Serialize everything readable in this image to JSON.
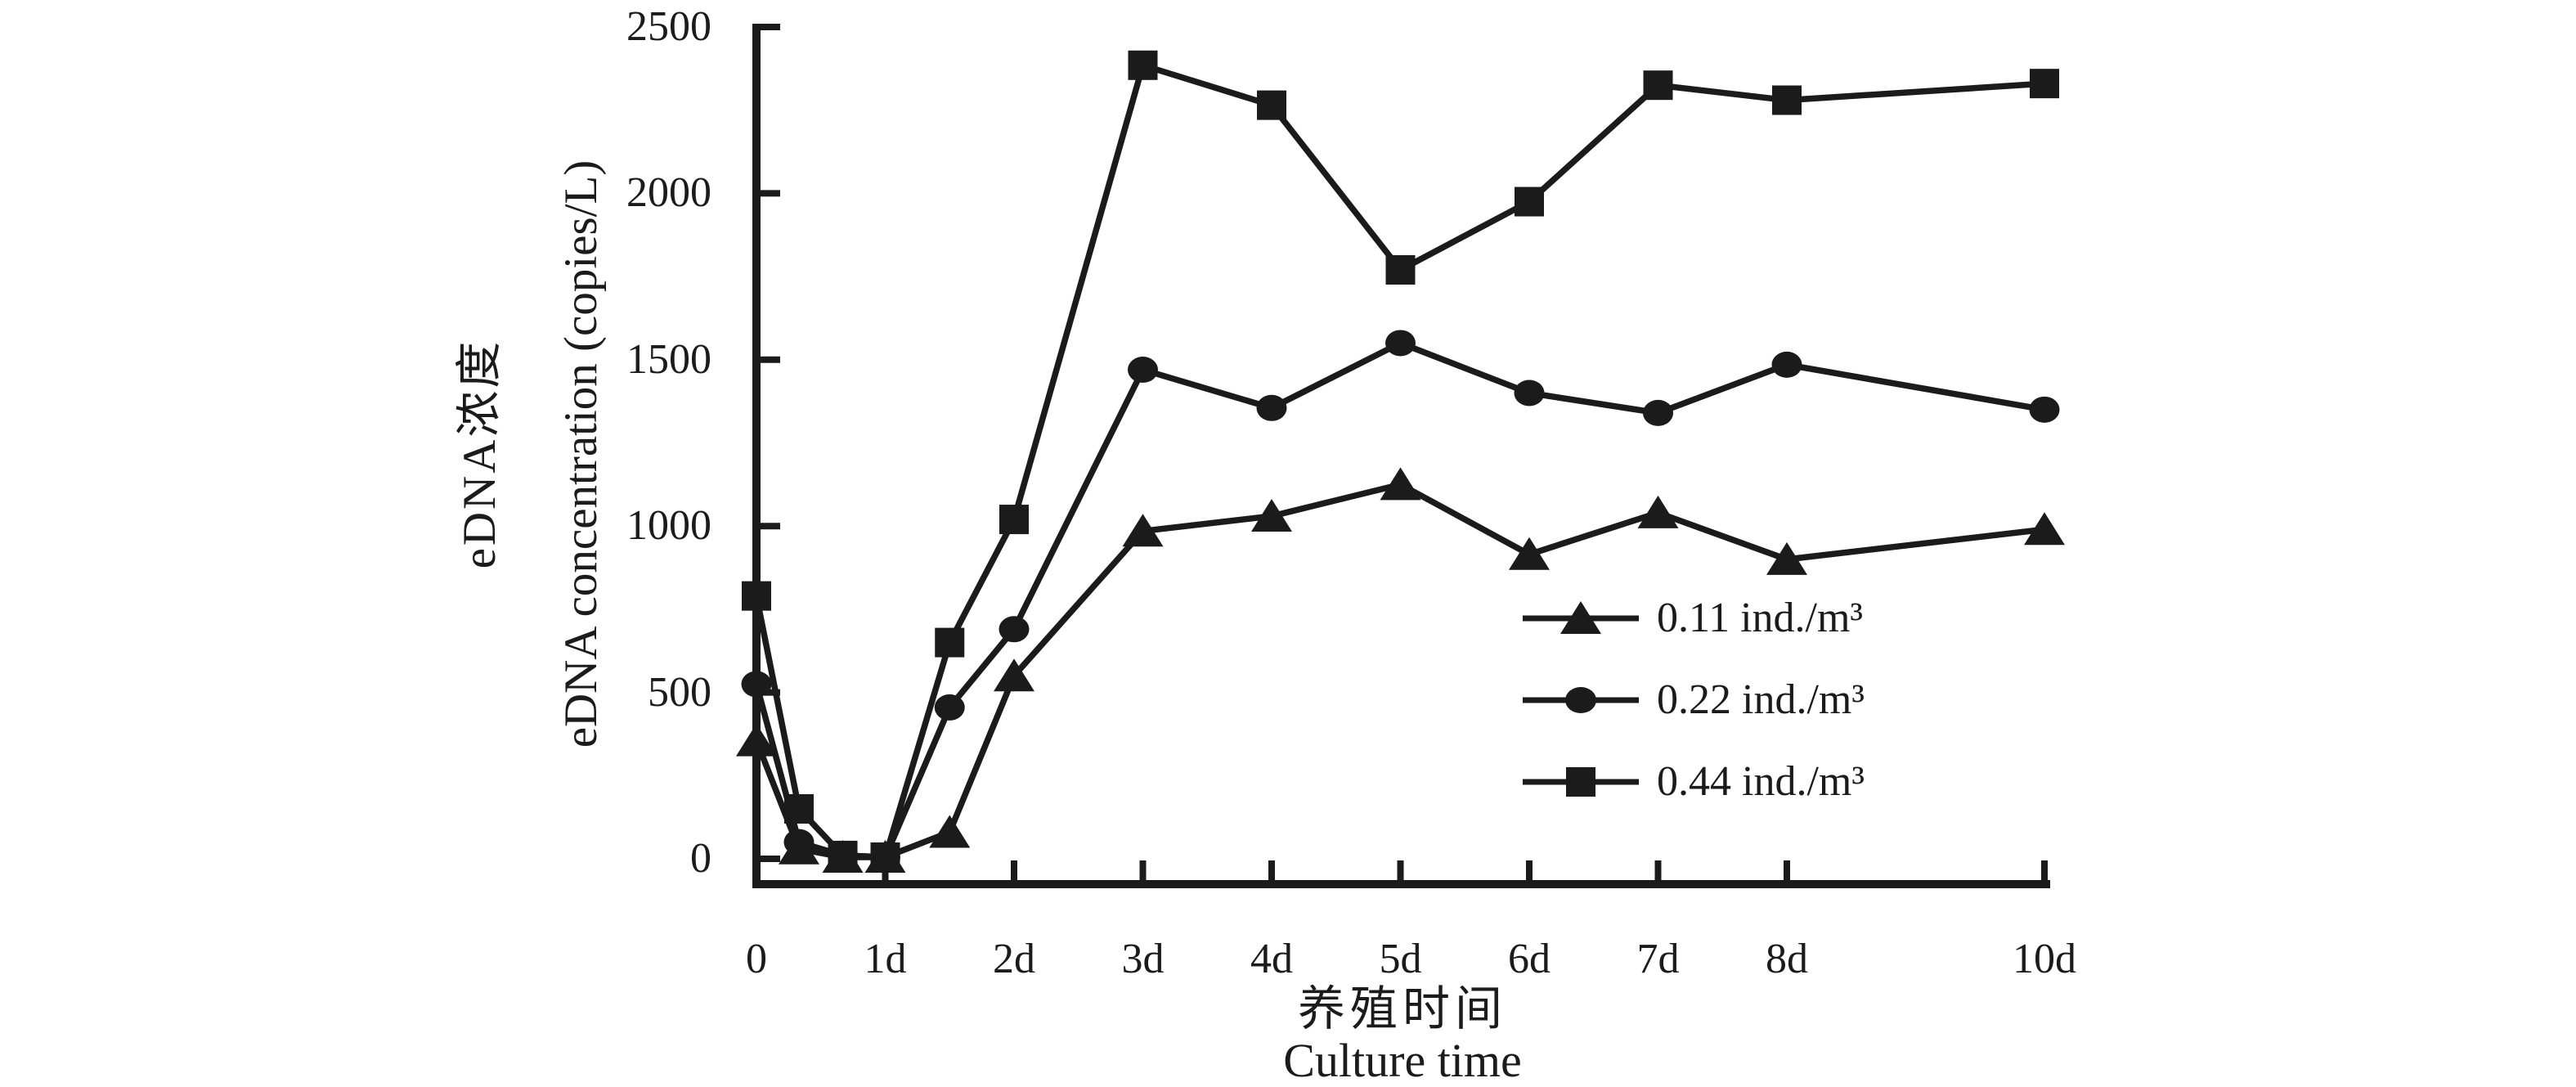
{
  "figure": {
    "background": "#ffffff",
    "ink_color": "#1b1b1b"
  },
  "chart_data": {
    "type": "line",
    "title": "",
    "xlabel_zh": "养殖时间",
    "xlabel_en": "Culture time",
    "ylabel_zh": "eDNA浓度",
    "ylabel_en": "eDNA concentration (copies/L)",
    "ylim": [
      0,
      2500
    ],
    "y_ticks": [
      0,
      500,
      1000,
      1500,
      2000,
      2500
    ],
    "x_days": [
      0,
      0.33,
      0.67,
      1,
      1.5,
      2,
      3,
      4,
      5,
      6,
      7,
      8,
      10
    ],
    "x_tick_days": [
      0,
      1,
      2,
      3,
      4,
      5,
      6,
      7,
      8,
      10
    ],
    "x_tick_labels": [
      "0",
      "1d",
      "2d",
      "3d",
      "4d",
      "5d",
      "6d",
      "7d",
      "8d",
      "10d"
    ],
    "grid": false,
    "legend_position": "center-right",
    "series": [
      {
        "name": "0.11 ind./m³",
        "marker": "triangle",
        "values": [
          355,
          30,
          5,
          5,
          80,
          550,
          985,
          1030,
          1125,
          915,
          1040,
          900,
          990
        ]
      },
      {
        "name": "0.22 ind./m³",
        "marker": "circle",
        "values": [
          525,
          50,
          10,
          5,
          455,
          690,
          1470,
          1355,
          1550,
          1400,
          1340,
          1485,
          1350
        ]
      },
      {
        "name": "0.44 ind./m³",
        "marker": "square",
        "values": [
          790,
          150,
          10,
          5,
          650,
          1020,
          2385,
          2265,
          1770,
          1975,
          2325,
          2280,
          2330
        ]
      }
    ]
  }
}
